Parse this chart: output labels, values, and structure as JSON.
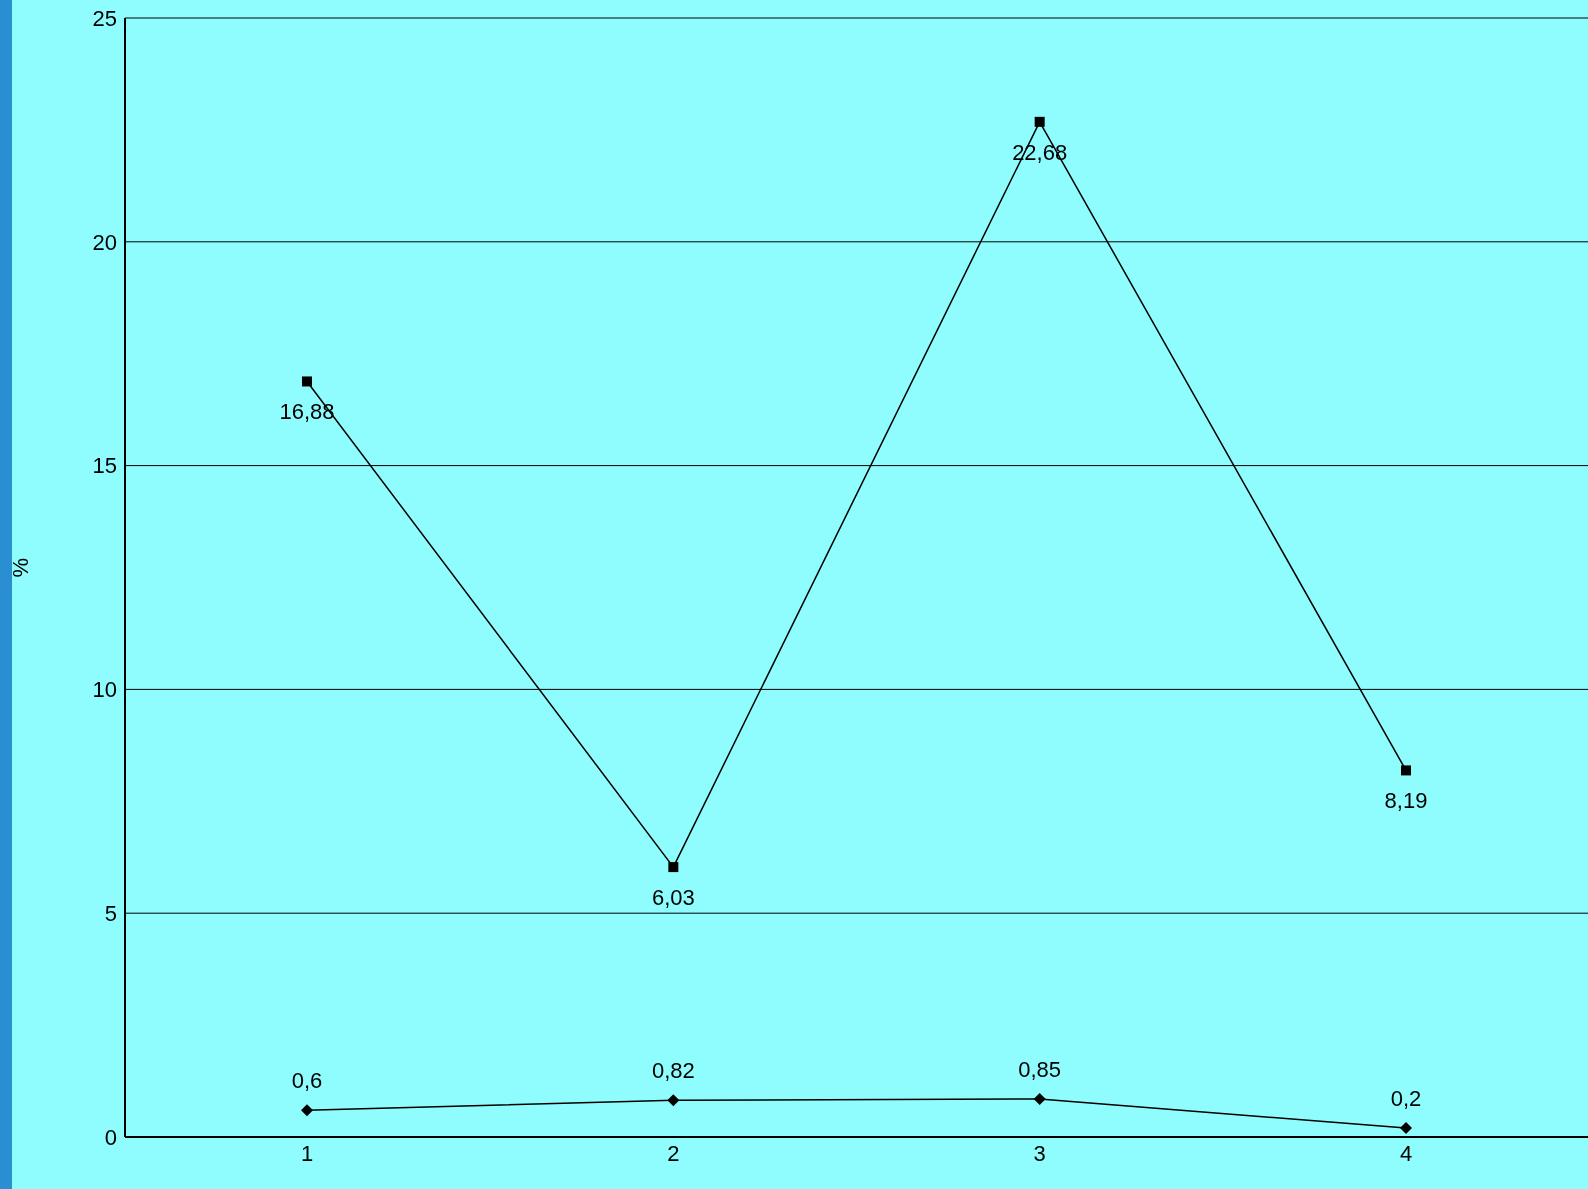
{
  "chart_data": {
    "type": "line",
    "ylabel": "%",
    "categories": [
      "1",
      "2",
      "3",
      "4"
    ],
    "series": [
      {
        "color": "#000000",
        "marker": "square",
        "values": [
          16.88,
          6.03,
          22.68,
          8.19
        ],
        "value_labels": [
          "16,88",
          "6,03",
          "22,68",
          "8,19"
        ]
      },
      {
        "color": "#000000",
        "marker": "diamond",
        "values": [
          0.6,
          0.82,
          0.85,
          0.2
        ],
        "value_labels": [
          "0,6",
          "0,82",
          "0,85",
          "0,2"
        ]
      }
    ],
    "ylim": [
      0,
      25
    ],
    "yticks": [
      0,
      5,
      10,
      15,
      20,
      25
    ],
    "grid": "y",
    "legend": false
  }
}
